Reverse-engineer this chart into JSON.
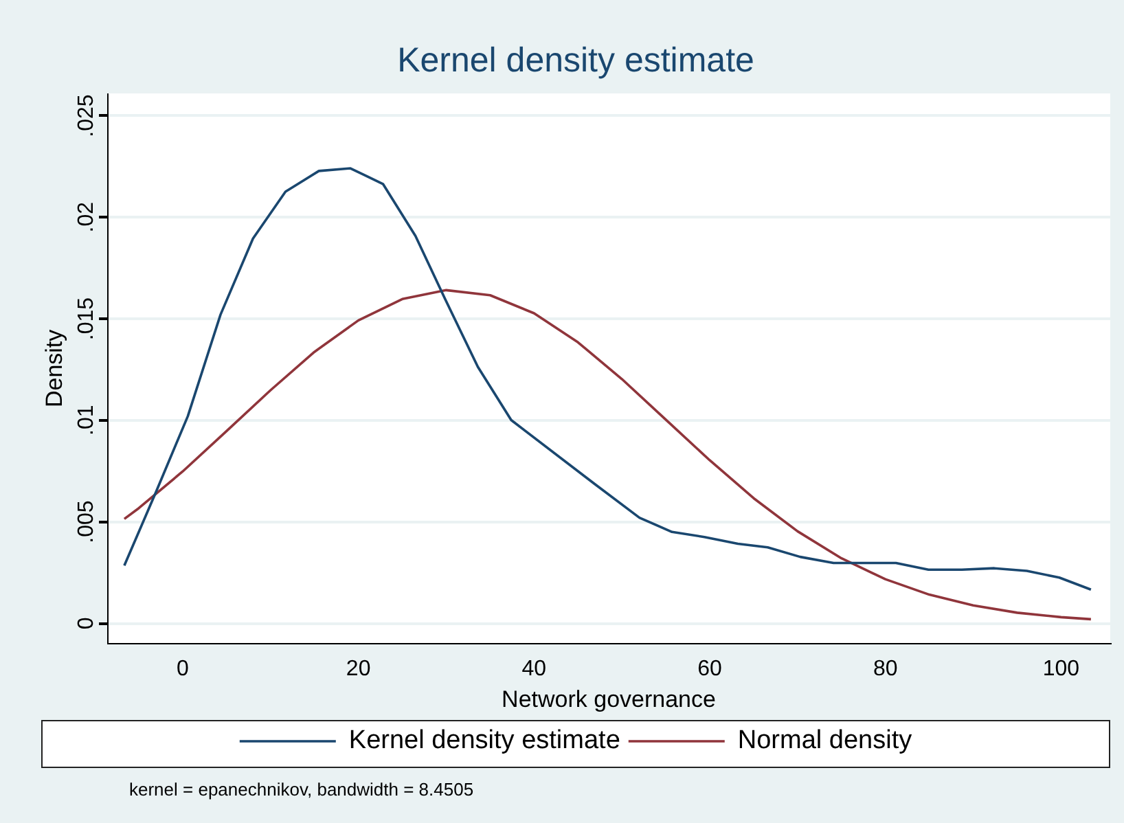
{
  "chart_data": {
    "type": "line",
    "title": "Kernel density estimate",
    "xlabel": "Network governance",
    "ylabel": "Density",
    "xlim": [
      -8.6,
      105.6
    ],
    "xticks": [
      0,
      20,
      40,
      60,
      80,
      100
    ],
    "ylim": [
      -0.001,
      0.0261
    ],
    "yticks": [
      0,
      {
        "value": 0.005,
        "label": ".005"
      },
      {
        "value": 0.01,
        "label": ".01"
      },
      {
        "value": 0.015,
        "label": ".015"
      },
      {
        "value": 0.02,
        "label": ".02"
      },
      {
        "value": 0.025,
        "label": ".025"
      }
    ],
    "grid": "y",
    "legend": "bottom",
    "marker": "none",
    "line_style": "solid",
    "annotations": [
      "kernel = epanechnikov, bandwidth = 8.4505"
    ],
    "series": [
      {
        "name": "Kernel density estimate",
        "color": "#1a476f",
        "x": [
          -6.65,
          -3.03,
          0.58,
          4.3,
          8.0,
          11.7,
          15.5,
          19.1,
          22.8,
          26.5,
          29.9,
          33.6,
          37.4,
          46.9,
          52.0,
          55.7,
          59.4,
          63.2,
          66.6,
          70.3,
          74.1,
          81.2,
          84.9,
          88.7,
          92.4,
          96.1,
          99.8,
          103.4
        ],
        "values": [
          0.00284,
          0.00648,
          0.0102,
          0.0152,
          0.01895,
          0.02126,
          0.02228,
          0.02241,
          0.02164,
          0.01908,
          0.01595,
          0.01263,
          0.01001,
          0.00686,
          0.0052,
          0.0045,
          0.00425,
          0.00392,
          0.00374,
          0.00327,
          0.00297,
          0.00297,
          0.00264,
          0.00264,
          0.00271,
          0.00258,
          0.00225,
          0.00166
        ]
      },
      {
        "name": "Normal density",
        "color": "#90353b",
        "x": [
          -6.65,
          -5,
          0,
          5,
          10,
          15,
          20,
          25,
          30,
          35,
          40,
          45,
          50,
          55,
          60,
          65,
          70,
          75,
          80,
          85,
          90,
          95,
          100,
          103.4
        ],
        "values": [
          0.00514,
          0.00567,
          0.00748,
          0.00947,
          0.01148,
          0.01337,
          0.01492,
          0.01597,
          0.01641,
          0.01616,
          0.01527,
          0.01384,
          0.01203,
          0.01003,
          0.00803,
          0.00616,
          0.00453,
          0.0032,
          0.00217,
          0.00141,
          0.00088,
          0.00052,
          0.0003,
          0.0002
        ]
      }
    ]
  }
}
